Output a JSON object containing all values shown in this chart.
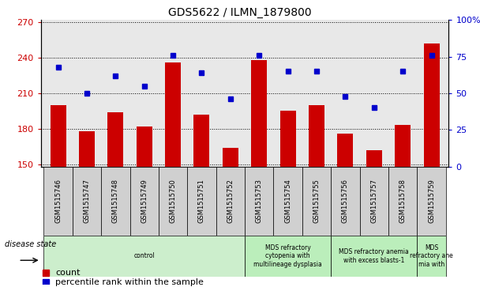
{
  "title": "GDS5622 / ILMN_1879800",
  "samples": [
    "GSM1515746",
    "GSM1515747",
    "GSM1515748",
    "GSM1515749",
    "GSM1515750",
    "GSM1515751",
    "GSM1515752",
    "GSM1515753",
    "GSM1515754",
    "GSM1515755",
    "GSM1515756",
    "GSM1515757",
    "GSM1515758",
    "GSM1515759"
  ],
  "counts": [
    200,
    178,
    194,
    182,
    236,
    192,
    164,
    238,
    195,
    200,
    176,
    162,
    183,
    252
  ],
  "percentiles": [
    68,
    50,
    62,
    55,
    76,
    64,
    46,
    76,
    65,
    65,
    48,
    40,
    65,
    76
  ],
  "ylim_left": [
    148,
    272
  ],
  "ylim_right": [
    0,
    100
  ],
  "yticks_left": [
    150,
    180,
    210,
    240,
    270
  ],
  "yticks_right": [
    0,
    25,
    50,
    75,
    100
  ],
  "bar_color": "#cc0000",
  "dot_color": "#0000cc",
  "plot_bg": "#e8e8e8",
  "label_bg": "#d0d0d0",
  "groups": [
    {
      "label": "control",
      "start": 0,
      "end": 7,
      "color": "#cceecc"
    },
    {
      "label": "MDS refractory\ncytopenia with\nmultilineage dysplasia",
      "start": 7,
      "end": 10,
      "color": "#bbeebb"
    },
    {
      "label": "MDS refractory anemia\nwith excess blasts-1",
      "start": 10,
      "end": 13,
      "color": "#bbeebb"
    },
    {
      "label": "MDS\nrefractory ane\nmia with",
      "start": 13,
      "end": 14,
      "color": "#bbeebb"
    }
  ],
  "disease_state_label": "disease state",
  "legend_count": "count",
  "legend_pct": "percentile rank within the sample",
  "right_tick_labels": [
    "0",
    "25",
    "50",
    "75",
    "100%"
  ]
}
